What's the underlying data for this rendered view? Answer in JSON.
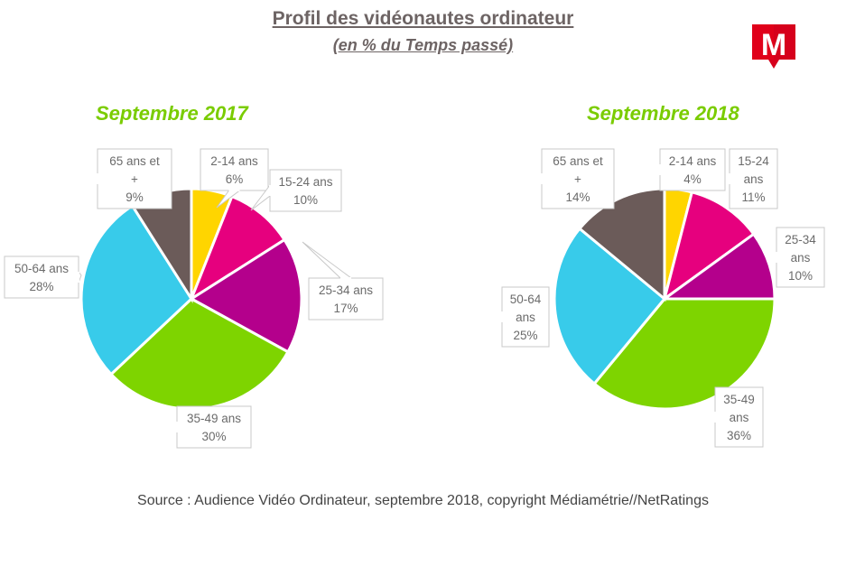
{
  "title": "Profil des vidéonautes ordinateur",
  "subtitle": "(en % du Temps passé)",
  "source": "Source : Audience Vidéo Ordinateur, septembre 2018, copyright Médiamétrie//NetRatings",
  "chart_data": [
    {
      "type": "pie",
      "title": "Septembre 2017",
      "slices": [
        {
          "label": "2-14 ans",
          "value": 6,
          "display": "6%",
          "color": "#ffd500"
        },
        {
          "label": "15-24 ans",
          "value": 10,
          "display": "10%",
          "color": "#e6007e"
        },
        {
          "label": "25-34 ans",
          "value": 17,
          "display": "17%",
          "color": "#b4008c"
        },
        {
          "label": "35-49 ans",
          "value": 30,
          "display": "30%",
          "color": "#7ed400"
        },
        {
          "label": "50-64 ans",
          "value": 28,
          "display": "28%",
          "color": "#38cbea"
        },
        {
          "label": "65 ans et +",
          "value": 9,
          "display": "9%",
          "color": "#6b5b59"
        }
      ]
    },
    {
      "type": "pie",
      "title": "Septembre 2018",
      "slices": [
        {
          "label": "2-14 ans",
          "value": 4,
          "display": "4%",
          "color": "#ffd500"
        },
        {
          "label": "15-24 ans",
          "value": 11,
          "display": "11%",
          "color": "#e6007e"
        },
        {
          "label": "25-34 ans",
          "value": 10,
          "display": "10%",
          "color": "#b4008c"
        },
        {
          "label": "35-49 ans",
          "value": 36,
          "display": "36%",
          "color": "#7ed400"
        },
        {
          "label": "50-64 ans",
          "value": 25,
          "display": "25%",
          "color": "#38cbea"
        },
        {
          "label": "65 ans et +",
          "value": 14,
          "display": "14%",
          "color": "#6b5b59"
        }
      ]
    }
  ],
  "logo": {
    "letter": "M",
    "color": "#e2001a"
  }
}
